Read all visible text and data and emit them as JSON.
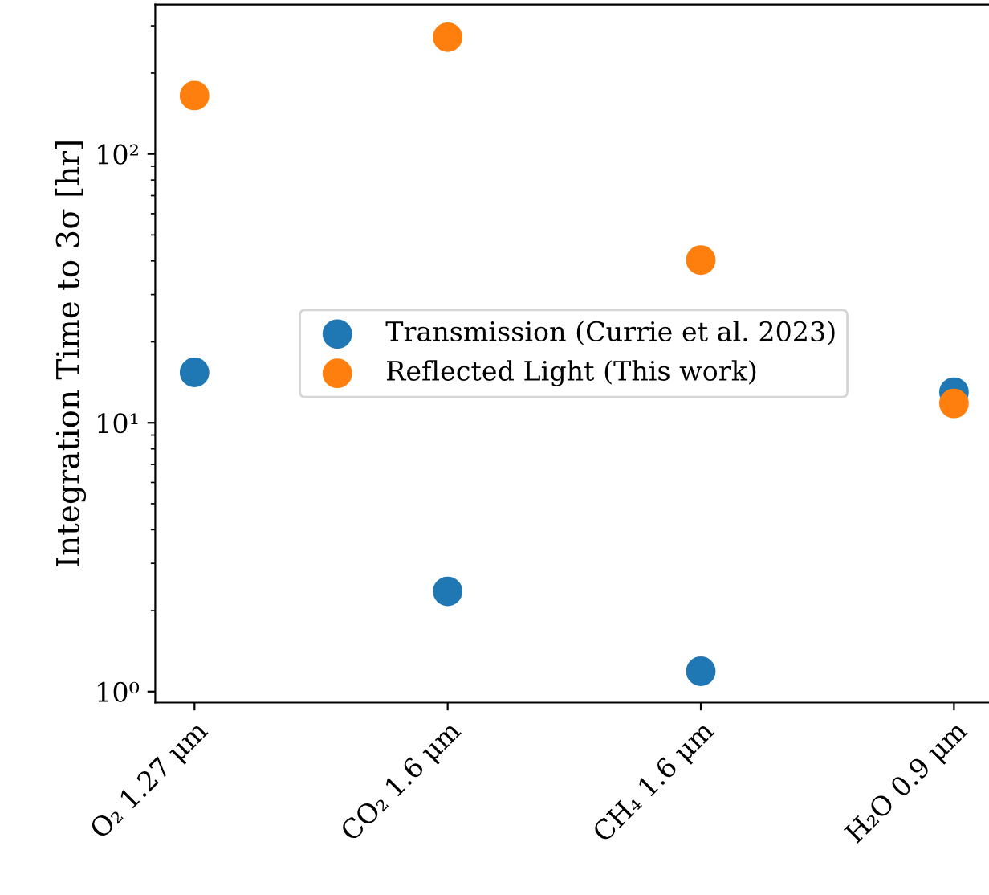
{
  "chart_data": {
    "type": "scatter",
    "ylabel": "Integration Time to 3σ [hr]",
    "categories": [
      "O₂ 1.27 μm",
      "CO₂ 1.6 μm",
      "CH₄ 1.6 μm",
      "H₂O 0.9 μm"
    ],
    "series": [
      {
        "name": "Transmission (Currie et al. 2023)",
        "color": "#1f77b4",
        "values": [
          15.4,
          2.36,
          1.19,
          13.0
        ]
      },
      {
        "name": "Reflected Light (This work)",
        "color": "#ff7f0e",
        "values": [
          165,
          272,
          40.3,
          11.8
        ]
      }
    ],
    "log": "y",
    "ylim": [
      0.91,
      360
    ],
    "yticks": [
      {
        "value": 1,
        "label": "10⁰"
      },
      {
        "value": 10,
        "label": "10¹"
      },
      {
        "value": 100,
        "label": "10²"
      }
    ],
    "marker": "circle",
    "legend": "center",
    "grid": false
  }
}
